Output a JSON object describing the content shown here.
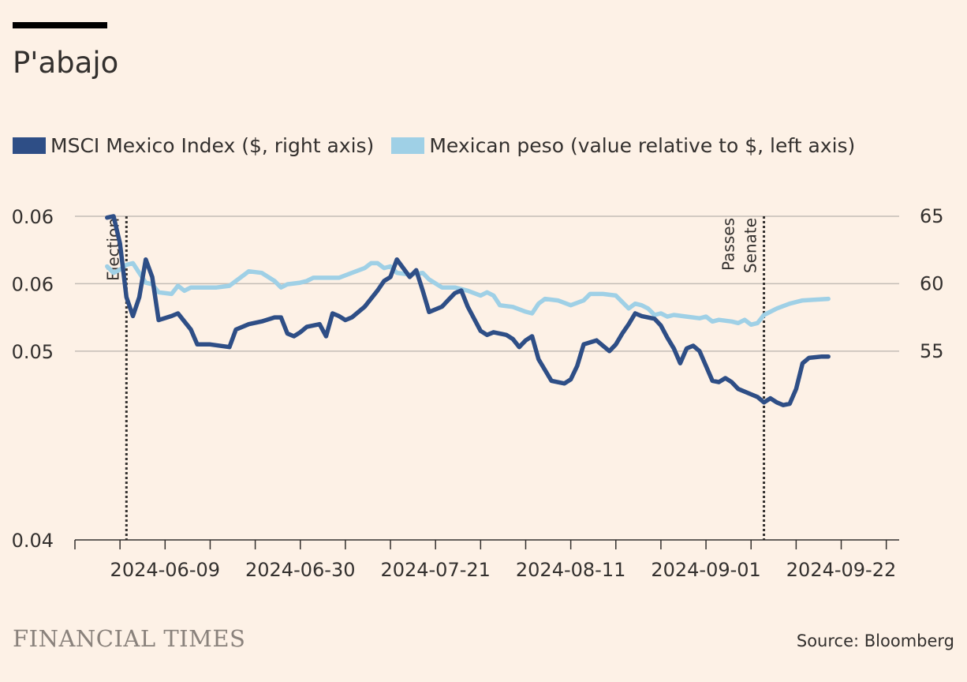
{
  "title": "P'abajo",
  "footer": {
    "brand": "FINANCIAL TIMES",
    "source": "Source: Bloomberg"
  },
  "colors": {
    "background": "#fdf1e6",
    "msci": "#2e4e86",
    "peso": "#9fd0e6",
    "grid": "#c4bdb6",
    "text": "#33302e"
  },
  "chart_data": {
    "type": "line",
    "legend": [
      {
        "name": "MSCI Mexico Index ($, right axis)",
        "color": "#2e4e86"
      },
      {
        "name": "Mexican peso (value relative to $, left axis)",
        "color": "#9fd0e6"
      }
    ],
    "x_ticks": [
      "2024-06-09",
      "2024-06-30",
      "2024-07-21",
      "2024-08-11",
      "2024-09-01",
      "2024-09-22"
    ],
    "left_axis": {
      "ticks": [
        "0.06",
        "0.06",
        "0.05",
        "0.04"
      ],
      "ylim": [
        0.04,
        0.06
      ]
    },
    "right_axis": {
      "ticks": [
        "65",
        "60",
        "55"
      ],
      "ylim": [
        41,
        65
      ]
    },
    "annotations": [
      {
        "date": "2024-06-03",
        "label": "Election"
      },
      {
        "date": "2024-09-10",
        "label_lines": [
          "Passes",
          "Senate"
        ]
      }
    ],
    "series": [
      {
        "name": "MSCI Mexico Index ($, right axis)",
        "axis": "right",
        "points": [
          [
            "2024-05-31",
            64.9
          ],
          [
            "2024-06-01",
            65.0
          ],
          [
            "2024-06-02",
            63.0
          ],
          [
            "2024-06-03",
            59.0
          ],
          [
            "2024-06-04",
            57.6
          ],
          [
            "2024-06-05",
            59.0
          ],
          [
            "2024-06-06",
            61.8
          ],
          [
            "2024-06-07",
            60.5
          ],
          [
            "2024-06-08",
            57.3
          ],
          [
            "2024-06-10",
            57.6
          ],
          [
            "2024-06-11",
            57.8
          ],
          [
            "2024-06-13",
            56.6
          ],
          [
            "2024-06-14",
            55.5
          ],
          [
            "2024-06-16",
            55.5
          ],
          [
            "2024-06-19",
            55.3
          ],
          [
            "2024-06-20",
            56.6
          ],
          [
            "2024-06-22",
            57.0
          ],
          [
            "2024-06-24",
            57.2
          ],
          [
            "2024-06-26",
            57.5
          ],
          [
            "2024-06-27",
            57.5
          ],
          [
            "2024-06-28",
            56.3
          ],
          [
            "2024-06-29",
            56.1
          ],
          [
            "2024-06-30",
            56.4
          ],
          [
            "2024-07-01",
            56.8
          ],
          [
            "2024-07-03",
            57.0
          ],
          [
            "2024-07-04",
            56.1
          ],
          [
            "2024-07-05",
            57.8
          ],
          [
            "2024-07-06",
            57.6
          ],
          [
            "2024-07-07",
            57.3
          ],
          [
            "2024-07-08",
            57.5
          ],
          [
            "2024-07-10",
            58.3
          ],
          [
            "2024-07-12",
            59.5
          ],
          [
            "2024-07-13",
            60.2
          ],
          [
            "2024-07-14",
            60.5
          ],
          [
            "2024-07-15",
            61.8
          ],
          [
            "2024-07-17",
            60.5
          ],
          [
            "2024-07-18",
            61.0
          ],
          [
            "2024-07-19",
            59.5
          ],
          [
            "2024-07-20",
            57.9
          ],
          [
            "2024-07-22",
            58.3
          ],
          [
            "2024-07-23",
            58.8
          ],
          [
            "2024-07-24",
            59.3
          ],
          [
            "2024-07-25",
            59.5
          ],
          [
            "2024-07-26",
            58.3
          ],
          [
            "2024-07-28",
            56.5
          ],
          [
            "2024-07-29",
            56.2
          ],
          [
            "2024-07-30",
            56.4
          ],
          [
            "2024-08-01",
            56.2
          ],
          [
            "2024-08-02",
            55.9
          ],
          [
            "2024-08-03",
            55.3
          ],
          [
            "2024-08-04",
            55.8
          ],
          [
            "2024-08-05",
            56.1
          ],
          [
            "2024-08-06",
            54.4
          ],
          [
            "2024-08-08",
            52.8
          ],
          [
            "2024-08-10",
            52.6
          ],
          [
            "2024-08-11",
            52.9
          ],
          [
            "2024-08-12",
            53.9
          ],
          [
            "2024-08-13",
            55.5
          ],
          [
            "2024-08-15",
            55.8
          ],
          [
            "2024-08-17",
            55.0
          ],
          [
            "2024-08-18",
            55.5
          ],
          [
            "2024-08-19",
            56.3
          ],
          [
            "2024-08-20",
            57.0
          ],
          [
            "2024-08-21",
            57.8
          ],
          [
            "2024-08-22",
            57.6
          ],
          [
            "2024-08-24",
            57.4
          ],
          [
            "2024-08-25",
            56.9
          ],
          [
            "2024-08-26",
            56.0
          ],
          [
            "2024-08-27",
            55.2
          ],
          [
            "2024-08-28",
            54.1
          ],
          [
            "2024-08-29",
            55.2
          ],
          [
            "2024-08-30",
            55.4
          ],
          [
            "2024-08-31",
            55.0
          ],
          [
            "2024-09-02",
            52.8
          ],
          [
            "2024-09-03",
            52.7
          ],
          [
            "2024-09-04",
            53.0
          ],
          [
            "2024-09-05",
            52.7
          ],
          [
            "2024-09-06",
            52.2
          ],
          [
            "2024-09-08",
            51.8
          ],
          [
            "2024-09-09",
            51.6
          ],
          [
            "2024-09-10",
            51.2
          ],
          [
            "2024-09-11",
            51.5
          ],
          [
            "2024-09-12",
            51.2
          ],
          [
            "2024-09-13",
            51.0
          ],
          [
            "2024-09-14",
            51.1
          ],
          [
            "2024-09-15",
            52.2
          ],
          [
            "2024-09-16",
            54.1
          ],
          [
            "2024-09-17",
            54.5
          ],
          [
            "2024-09-19",
            54.6
          ],
          [
            "2024-09-20",
            54.6
          ]
        ]
      },
      {
        "name": "Mexican peso (value relative to $, left axis)",
        "axis": "left",
        "points": [
          [
            "2024-05-31",
            0.0569
          ],
          [
            "2024-06-01",
            0.0565
          ],
          [
            "2024-06-02",
            0.0567
          ],
          [
            "2024-06-03",
            0.057
          ],
          [
            "2024-06-04",
            0.0571
          ],
          [
            "2024-06-05",
            0.0565
          ],
          [
            "2024-06-06",
            0.0559
          ],
          [
            "2024-06-07",
            0.0558
          ],
          [
            "2024-06-08",
            0.0553
          ],
          [
            "2024-06-10",
            0.0552
          ],
          [
            "2024-06-11",
            0.0557
          ],
          [
            "2024-06-12",
            0.0554
          ],
          [
            "2024-06-13",
            0.0556
          ],
          [
            "2024-06-15",
            0.0556
          ],
          [
            "2024-06-17",
            0.0556
          ],
          [
            "2024-06-19",
            0.0557
          ],
          [
            "2024-06-21",
            0.0563
          ],
          [
            "2024-06-22",
            0.0566
          ],
          [
            "2024-06-24",
            0.0565
          ],
          [
            "2024-06-26",
            0.056
          ],
          [
            "2024-06-27",
            0.0556
          ],
          [
            "2024-06-28",
            0.0558
          ],
          [
            "2024-06-30",
            0.0559
          ],
          [
            "2024-07-01",
            0.056
          ],
          [
            "2024-07-02",
            0.0562
          ],
          [
            "2024-07-04",
            0.0562
          ],
          [
            "2024-07-06",
            0.0562
          ],
          [
            "2024-07-08",
            0.0565
          ],
          [
            "2024-07-10",
            0.0568
          ],
          [
            "2024-07-11",
            0.0571
          ],
          [
            "2024-07-12",
            0.0571
          ],
          [
            "2024-07-13",
            0.0568
          ],
          [
            "2024-07-14",
            0.0569
          ],
          [
            "2024-07-15",
            0.0565
          ],
          [
            "2024-07-17",
            0.0564
          ],
          [
            "2024-07-19",
            0.0565
          ],
          [
            "2024-07-20",
            0.0561
          ],
          [
            "2024-07-22",
            0.0556
          ],
          [
            "2024-07-24",
            0.0556
          ],
          [
            "2024-07-26",
            0.0554
          ],
          [
            "2024-07-28",
            0.0551
          ],
          [
            "2024-07-29",
            0.0553
          ],
          [
            "2024-07-30",
            0.0551
          ],
          [
            "2024-07-31",
            0.0545
          ],
          [
            "2024-08-02",
            0.0544
          ],
          [
            "2024-08-04",
            0.0541
          ],
          [
            "2024-08-05",
            0.054
          ],
          [
            "2024-08-06",
            0.0546
          ],
          [
            "2024-08-07",
            0.0549
          ],
          [
            "2024-08-09",
            0.0548
          ],
          [
            "2024-08-11",
            0.0545
          ],
          [
            "2024-08-13",
            0.0548
          ],
          [
            "2024-08-14",
            0.0552
          ],
          [
            "2024-08-16",
            0.0552
          ],
          [
            "2024-08-18",
            0.0551
          ],
          [
            "2024-08-19",
            0.0547
          ],
          [
            "2024-08-20",
            0.0543
          ],
          [
            "2024-08-21",
            0.0546
          ],
          [
            "2024-08-22",
            0.0545
          ],
          [
            "2024-08-23",
            0.0543
          ],
          [
            "2024-08-24",
            0.0539
          ],
          [
            "2024-08-25",
            0.054
          ],
          [
            "2024-08-26",
            0.0538
          ],
          [
            "2024-08-27",
            0.0539
          ],
          [
            "2024-08-29",
            0.0538
          ],
          [
            "2024-08-31",
            0.0537
          ],
          [
            "2024-09-01",
            0.0538
          ],
          [
            "2024-09-02",
            0.0535
          ],
          [
            "2024-09-03",
            0.0536
          ],
          [
            "2024-09-05",
            0.0535
          ],
          [
            "2024-09-06",
            0.0534
          ],
          [
            "2024-09-07",
            0.0536
          ],
          [
            "2024-09-08",
            0.0533
          ],
          [
            "2024-09-09",
            0.0534
          ],
          [
            "2024-09-10",
            0.0539
          ],
          [
            "2024-09-12",
            0.0543
          ],
          [
            "2024-09-14",
            0.0546
          ],
          [
            "2024-09-16",
            0.0548
          ],
          [
            "2024-09-20",
            0.0549
          ]
        ]
      }
    ]
  }
}
